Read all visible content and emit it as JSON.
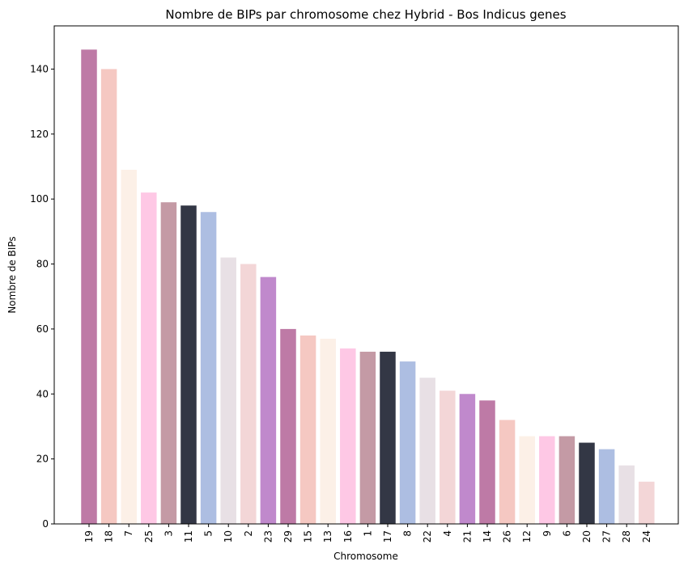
{
  "chart_data": {
    "type": "bar",
    "title": "Nombre de BIPs par chromosome chez Hybrid - Bos Indicus genes",
    "xlabel": "Chromosome",
    "ylabel": "Nombre de BIPs",
    "categories": [
      "19",
      "18",
      "7",
      "25",
      "3",
      "11",
      "5",
      "10",
      "2",
      "23",
      "29",
      "15",
      "13",
      "16",
      "1",
      "17",
      "8",
      "22",
      "4",
      "21",
      "14",
      "26",
      "12",
      "9",
      "6",
      "20",
      "27",
      "28",
      "24"
    ],
    "values": [
      146,
      140,
      109,
      102,
      99,
      98,
      96,
      82,
      80,
      76,
      60,
      58,
      57,
      54,
      53,
      53,
      50,
      45,
      41,
      40,
      38,
      32,
      27,
      27,
      27,
      25,
      23,
      18,
      13
    ],
    "ylim": [
      0,
      153.3
    ],
    "yticks": [
      0,
      20,
      40,
      60,
      80,
      100,
      120,
      140
    ],
    "grid": false,
    "palette": [
      "#be7aa6",
      "#f5c8c2",
      "#fcf0e7",
      "#fec8e5",
      "#c49aa5",
      "#333745",
      "#adbee2",
      "#e8e0e5",
      "#f3d6d7",
      "#c089cc"
    ]
  }
}
